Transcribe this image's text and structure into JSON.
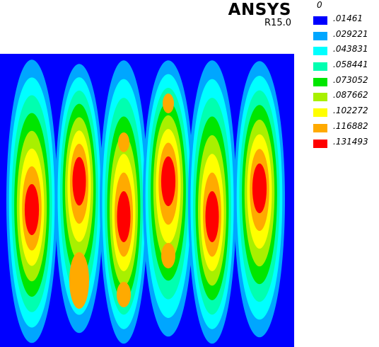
{
  "header": {
    "brand": "ANSYS",
    "version": "R15.0"
  },
  "legend": {
    "zero_label": "0",
    "items": [
      {
        "label": ".01461",
        "color": "#0000ff"
      },
      {
        "label": ".029221",
        "color": "#00a6ff"
      },
      {
        "label": ".043831",
        "color": "#00ffff"
      },
      {
        "label": ".058441",
        "color": "#00ffb0"
      },
      {
        "label": ".073052",
        "color": "#00e600"
      },
      {
        "label": ".087662",
        "color": "#a8f000"
      },
      {
        "label": ".102272",
        "color": "#ffff00"
      },
      {
        "label": ".116882",
        "color": "#ffaa00"
      },
      {
        "label": ".131493",
        "color": "#ff0000"
      }
    ]
  },
  "plot": {
    "background_color": "#0000ff",
    "contour_levels": [
      0.01461,
      0.029221,
      0.043831,
      0.058441,
      0.073052,
      0.087662,
      0.102272,
      0.116882
    ],
    "level_colors": [
      "#00a6ff",
      "#00ffff",
      "#00ffb0",
      "#00e600",
      "#a8f000",
      "#ffff00",
      "#ffaa00",
      "#ff0000"
    ],
    "bands": [
      {
        "peaks": [
          0.131493
        ]
      },
      {
        "peaks": [
          0.131493
        ]
      },
      {
        "peaks": [
          0.131493
        ]
      },
      {
        "peaks": [
          0.131493
        ]
      },
      {
        "peaks": [
          0.131493
        ]
      },
      {
        "peaks": [
          0.131493
        ]
      }
    ]
  }
}
